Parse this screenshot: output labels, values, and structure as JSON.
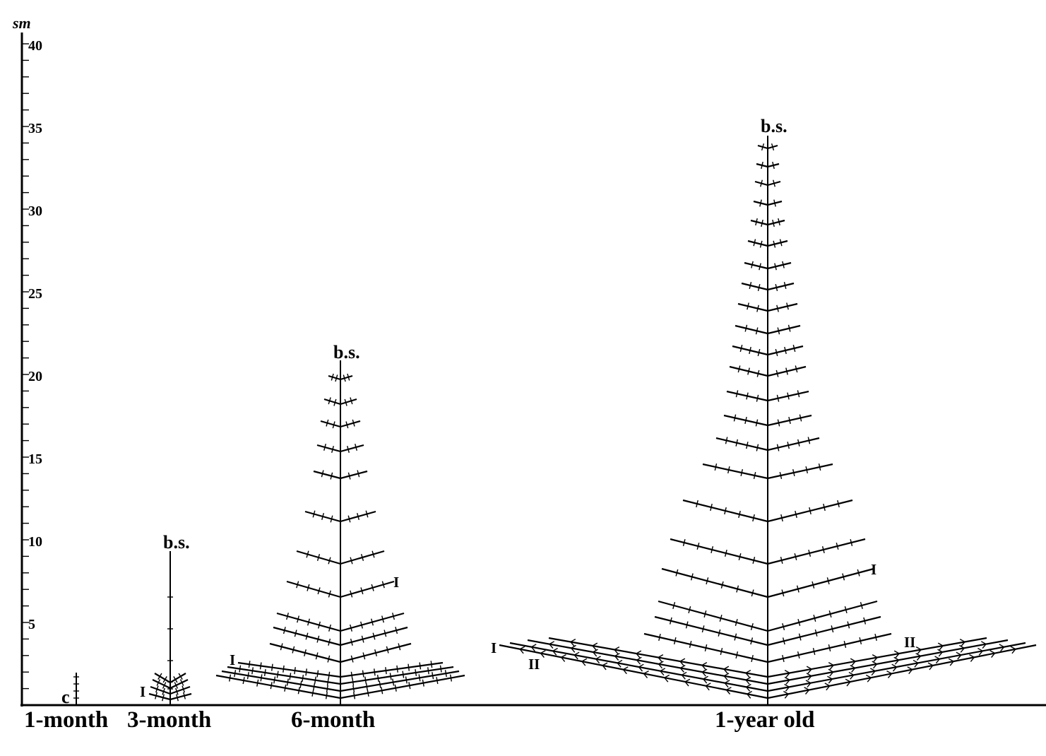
{
  "axis": {
    "unit": "sm",
    "ticks": [
      "40",
      "35",
      "30",
      "25",
      "20",
      "15",
      "10",
      "5"
    ]
  },
  "plants": [
    {
      "label": "1-month",
      "stem_label": "c"
    },
    {
      "label": "3-month",
      "stem_label": "b.s.",
      "order_labels": [
        "I"
      ]
    },
    {
      "label": "6-month",
      "stem_label": "b.s.",
      "order_labels": [
        "I",
        "I"
      ]
    },
    {
      "label": "1-year old",
      "stem_label": "b.s.",
      "order_labels": [
        "I",
        "II",
        "I",
        "II"
      ]
    }
  ]
}
